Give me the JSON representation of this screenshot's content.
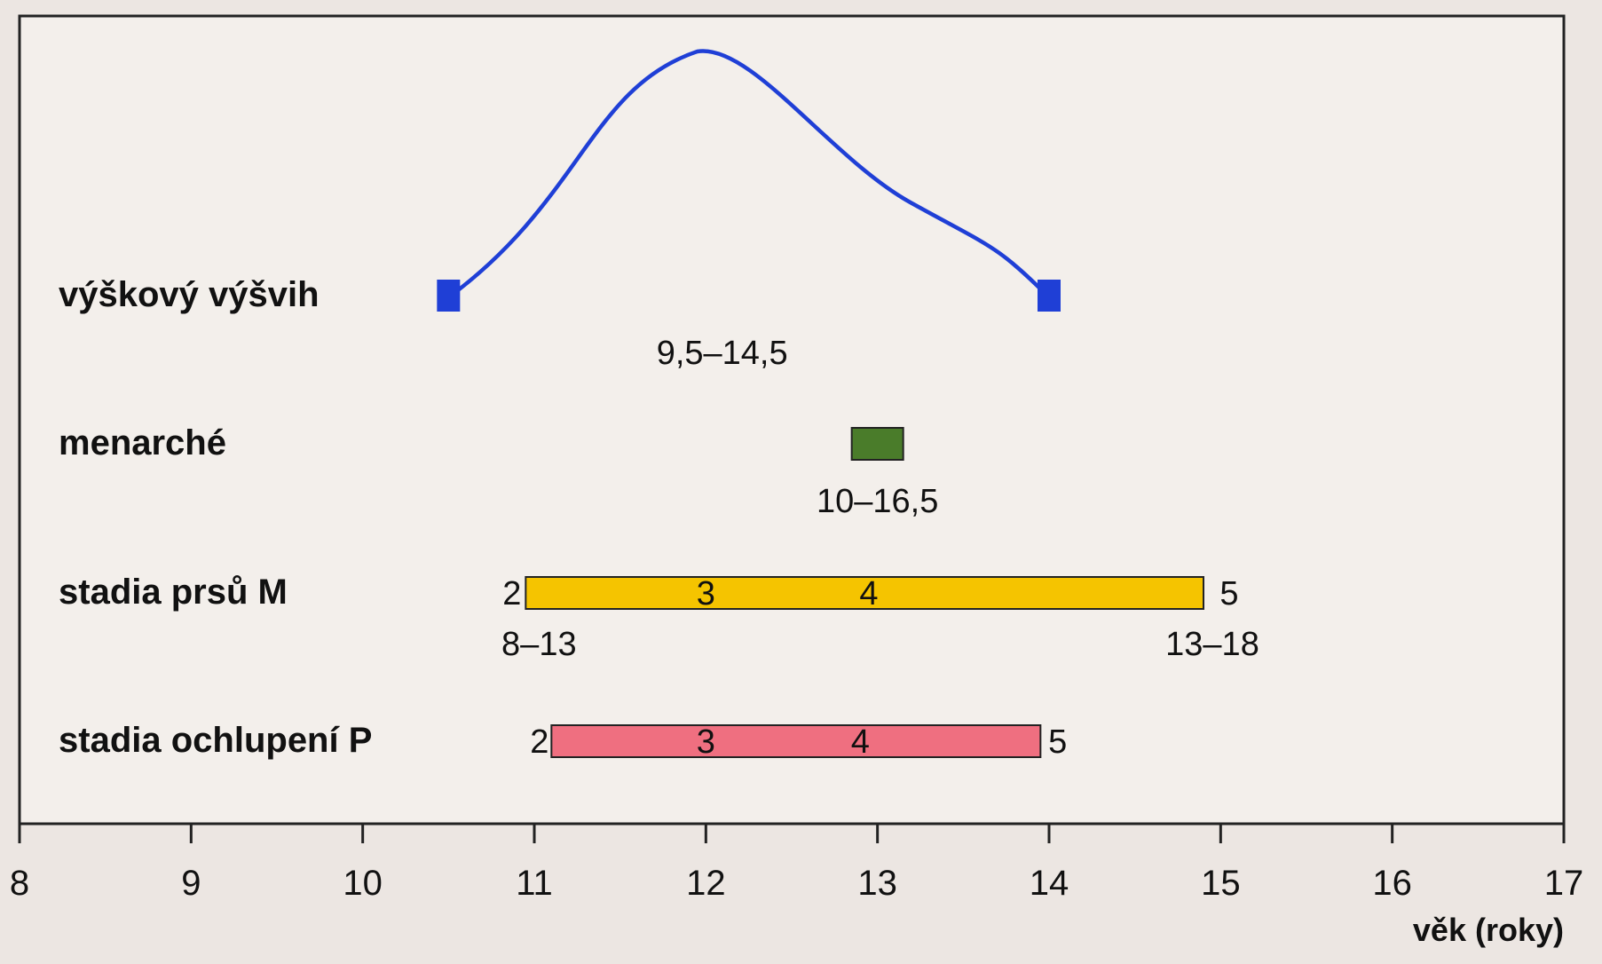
{
  "chart_data": {
    "type": "bar",
    "xlabel": "věk (roky)",
    "xlim": [
      8,
      17
    ],
    "xticks": [
      8,
      9,
      10,
      11,
      12,
      13,
      14,
      15,
      16,
      17
    ],
    "rows": [
      {
        "label": "výškový výšvih",
        "kind": "curve",
        "range_label": "9,5–14,5",
        "start": 10.5,
        "end": 14.0,
        "peak": 11.95,
        "color": "#1f3fd6"
      },
      {
        "label": "menarché",
        "kind": "bar",
        "range_label": "10–16,5",
        "start": 12.85,
        "end": 13.15,
        "color": "#4a7c2a"
      },
      {
        "label": "stadia prsů M",
        "kind": "bar",
        "start": 10.95,
        "end": 14.9,
        "color": "#f5c400",
        "stages": [
          {
            "label": "2",
            "x": 10.87
          },
          {
            "label": "3",
            "x": 12.0
          },
          {
            "label": "4",
            "x": 12.95
          },
          {
            "label": "5",
            "x": 15.05
          }
        ],
        "range_start_label": "8–13",
        "range_end_label": "13–18"
      },
      {
        "label": "stadia ochlupení P",
        "kind": "bar",
        "start": 11.1,
        "end": 13.95,
        "color": "#ef6f80",
        "stages": [
          {
            "label": "2",
            "x": 11.03
          },
          {
            "label": "3",
            "x": 12.0
          },
          {
            "label": "4",
            "x": 12.9
          },
          {
            "label": "5",
            "x": 14.05
          }
        ]
      }
    ]
  }
}
